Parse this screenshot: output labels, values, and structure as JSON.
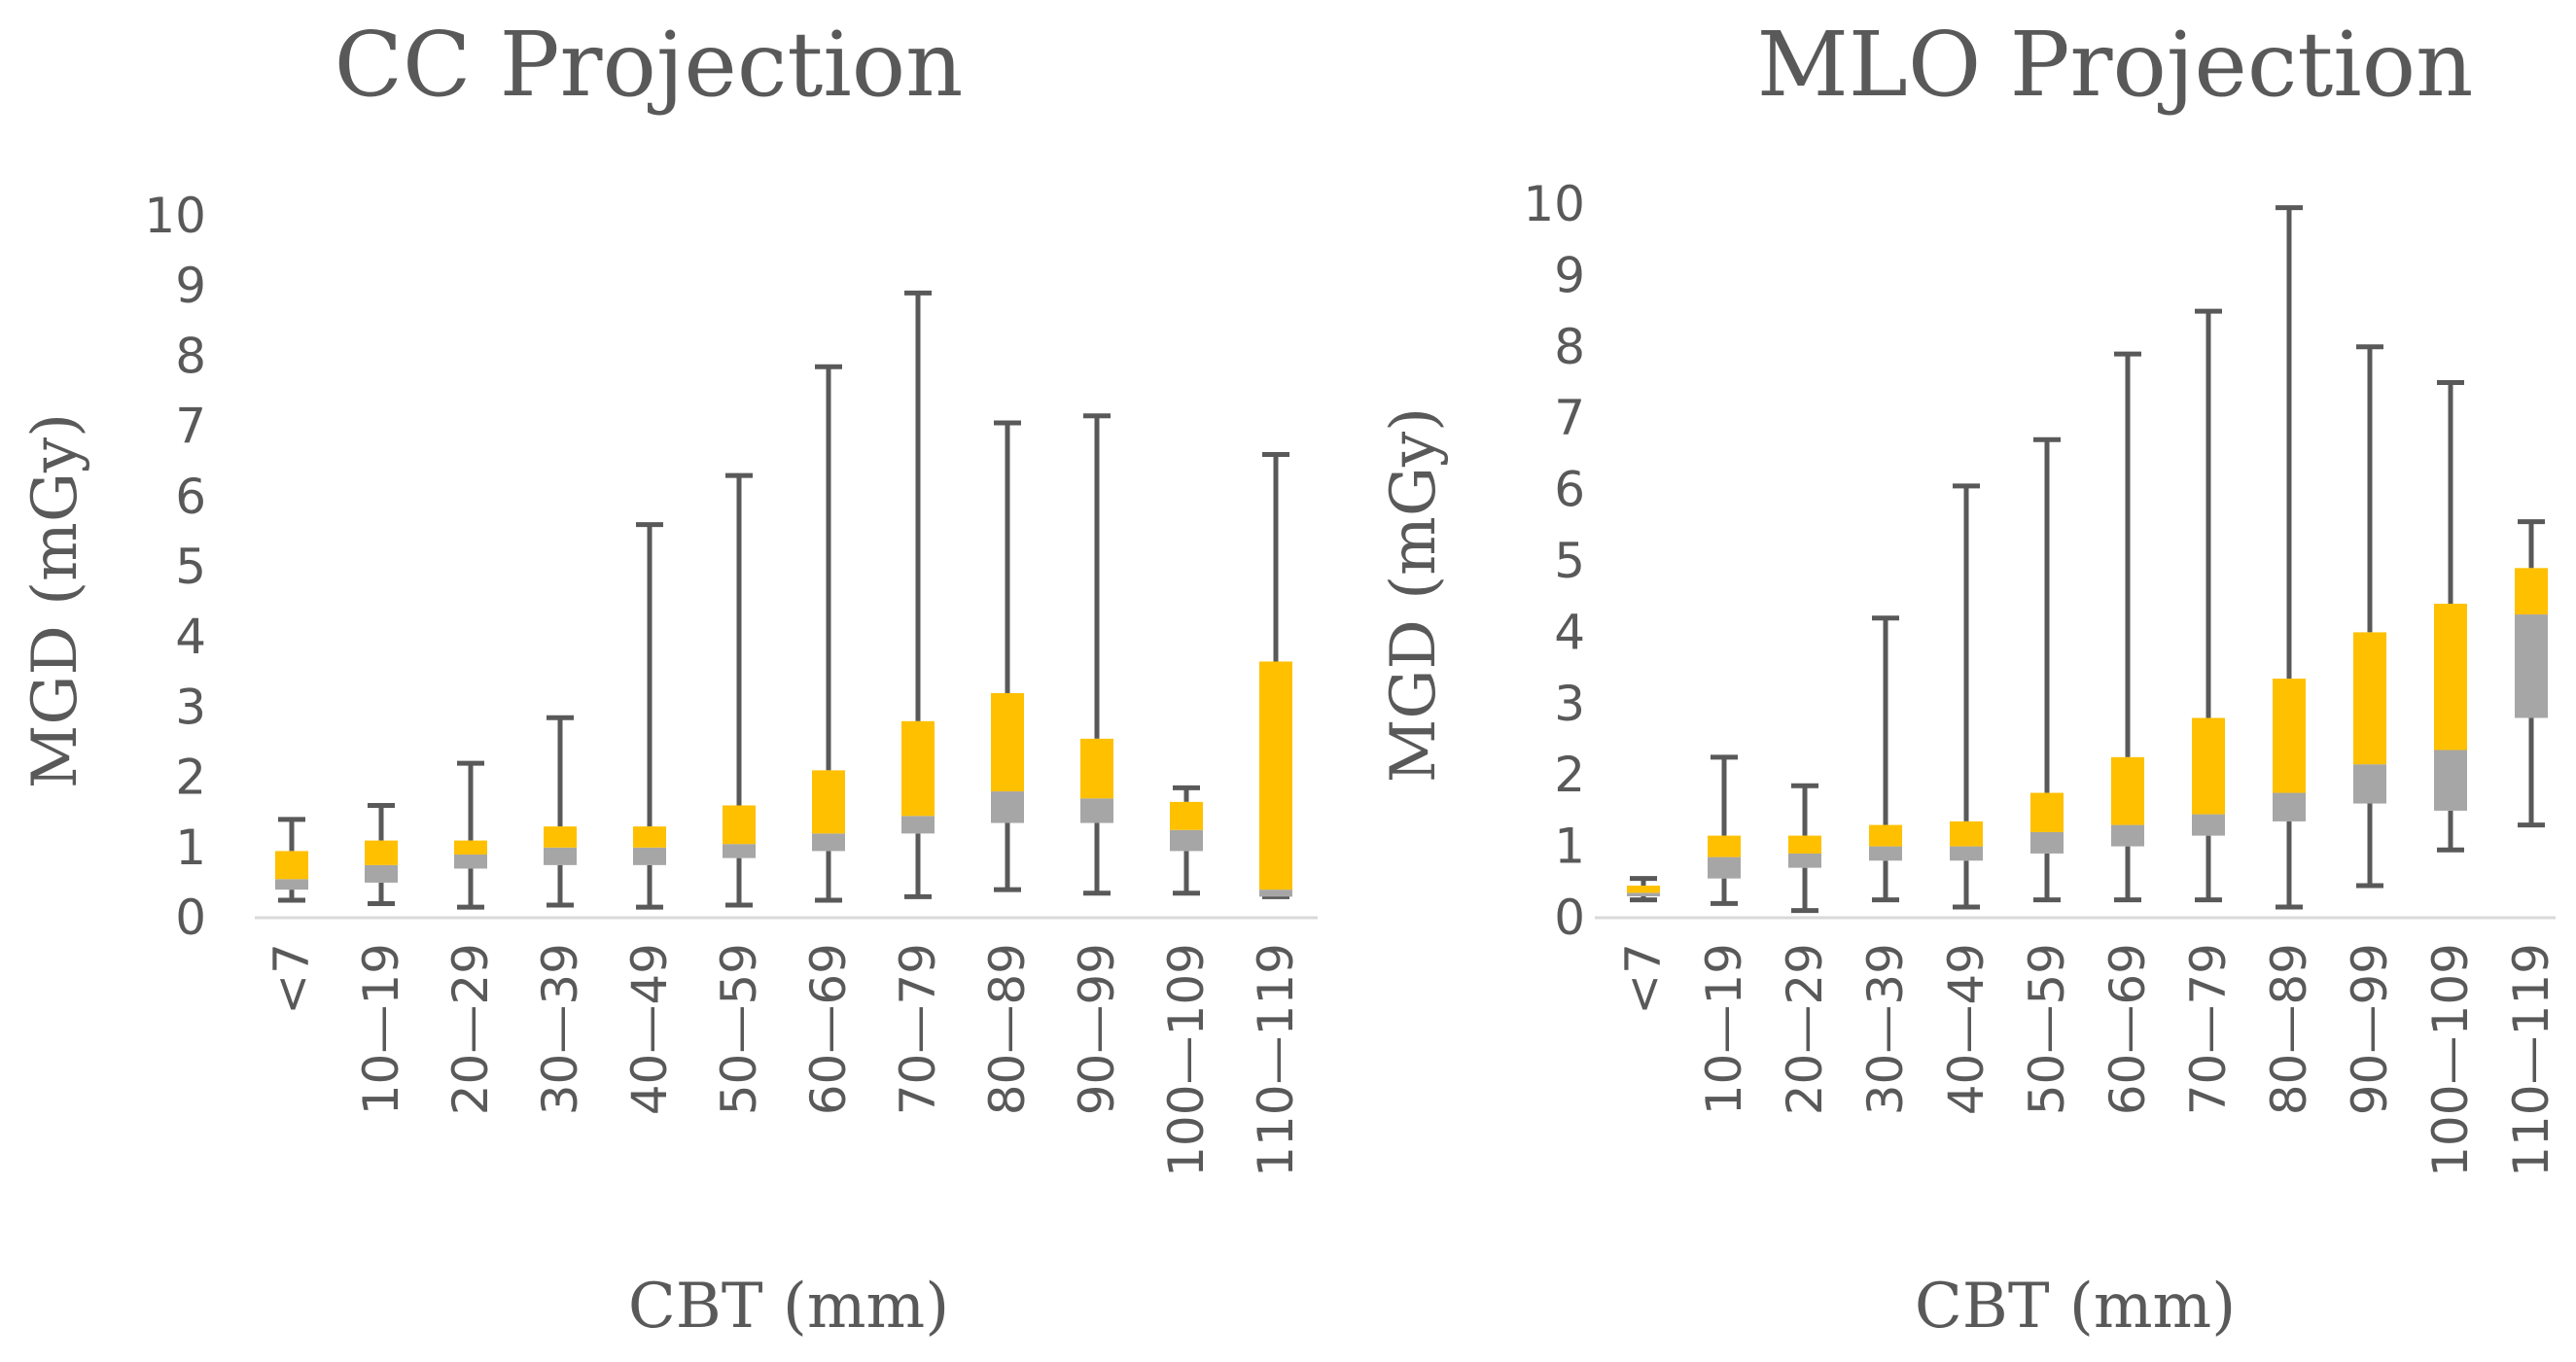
{
  "colors": {
    "whisker": "#595959",
    "lower_box": "#a6a6a6",
    "upper_box": "#ffc000",
    "axis": "#d9d9d9",
    "text": "#595959"
  },
  "chart_data": [
    {
      "type": "box",
      "title": "CC Projection",
      "xlabel": "CBT (mm)",
      "ylabel": "MGD (mGy)",
      "ylim": [
        0,
        10
      ],
      "yticks": [
        "0",
        "1",
        "2",
        "3",
        "4",
        "5",
        "6",
        "7",
        "8",
        "9",
        "10"
      ],
      "categories": [
        "<7",
        "10—19",
        "20—29",
        "30—39",
        "40—49",
        "50—59",
        "60—69",
        "70—79",
        "80—89",
        "90—99",
        "100—109",
        "110—119"
      ],
      "series": [
        {
          "name": "min",
          "values": [
            0.25,
            0.2,
            0.15,
            0.18,
            0.15,
            0.18,
            0.25,
            0.3,
            0.4,
            0.35,
            0.35,
            0.3
          ]
        },
        {
          "name": "q1",
          "values": [
            0.4,
            0.5,
            0.7,
            0.75,
            0.75,
            0.85,
            0.95,
            1.2,
            1.35,
            1.35,
            0.95,
            0.3
          ]
        },
        {
          "name": "median",
          "values": [
            0.55,
            0.75,
            0.9,
            1.0,
            1.0,
            1.05,
            1.2,
            1.45,
            1.8,
            1.7,
            1.25,
            0.4
          ]
        },
        {
          "name": "q3",
          "values": [
            0.95,
            1.1,
            1.1,
            1.3,
            1.3,
            1.6,
            2.1,
            2.8,
            3.2,
            2.55,
            1.65,
            3.65
          ]
        },
        {
          "name": "max",
          "values": [
            1.4,
            1.6,
            2.2,
            2.85,
            5.6,
            6.3,
            7.85,
            8.9,
            7.05,
            7.15,
            1.85,
            6.6
          ]
        }
      ]
    },
    {
      "type": "box",
      "title": "MLO Projection",
      "xlabel": "CBT (mm)",
      "ylabel": "MGD (mGy)",
      "ylim": [
        0,
        10
      ],
      "yticks": [
        "0",
        "1",
        "2",
        "3",
        "4",
        "5",
        "6",
        "7",
        "8",
        "9",
        "10"
      ],
      "categories": [
        "<7",
        "10—19",
        "20—29",
        "30—39",
        "40—49",
        "50—59",
        "60—69",
        "70—79",
        "80—89",
        "90—99",
        "100—109",
        "110—119"
      ],
      "series": [
        {
          "name": "min",
          "values": [
            0.25,
            0.2,
            0.1,
            0.25,
            0.15,
            0.25,
            0.25,
            0.25,
            0.15,
            0.45,
            0.95,
            1.3
          ]
        },
        {
          "name": "q1",
          "values": [
            0.3,
            0.55,
            0.7,
            0.8,
            0.8,
            0.9,
            1.0,
            1.15,
            1.35,
            1.6,
            1.5,
            2.8
          ]
        },
        {
          "name": "median",
          "values": [
            0.35,
            0.85,
            0.9,
            1.0,
            1.0,
            1.2,
            1.3,
            1.45,
            1.75,
            2.15,
            2.35,
            4.25
          ]
        },
        {
          "name": "q3",
          "values": [
            0.45,
            1.15,
            1.15,
            1.3,
            1.35,
            1.75,
            2.25,
            2.8,
            3.35,
            4.0,
            4.4,
            4.9
          ]
        },
        {
          "name": "max",
          "values": [
            0.55,
            2.25,
            1.85,
            4.2,
            6.05,
            6.7,
            7.9,
            8.5,
            9.95,
            8.0,
            7.5,
            5.55
          ]
        }
      ]
    }
  ]
}
